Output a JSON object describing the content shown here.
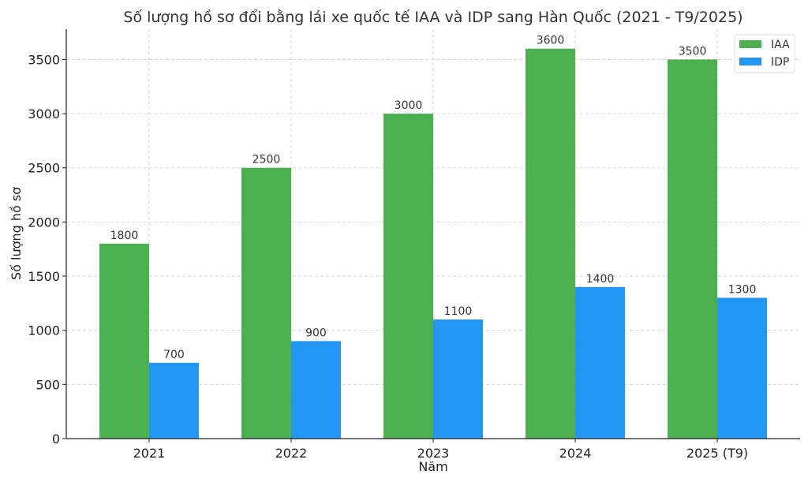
{
  "chart_data": {
    "type": "bar",
    "title": "Số lượng hồ sơ đổi bằng lái xe quốc tế IAA và IDP sang Hàn Quốc (2021 - T9/2025)",
    "xlabel": "Năm",
    "ylabel": "Số lượng hồ sơ",
    "categories": [
      "2021",
      "2022",
      "2023",
      "2024",
      "2025 (T9)"
    ],
    "series": [
      {
        "name": "IAA",
        "color": "#4caf50",
        "values": [
          1800,
          2500,
          3000,
          3600,
          3500
        ]
      },
      {
        "name": "IDP",
        "color": "#2196f3",
        "values": [
          700,
          900,
          1100,
          1400,
          1300
        ]
      }
    ],
    "ylim": [
      0,
      3780
    ],
    "yticks": [
      0,
      500,
      1000,
      1500,
      2000,
      2500,
      3000,
      3500
    ],
    "grid": true,
    "legend": "top-right"
  }
}
